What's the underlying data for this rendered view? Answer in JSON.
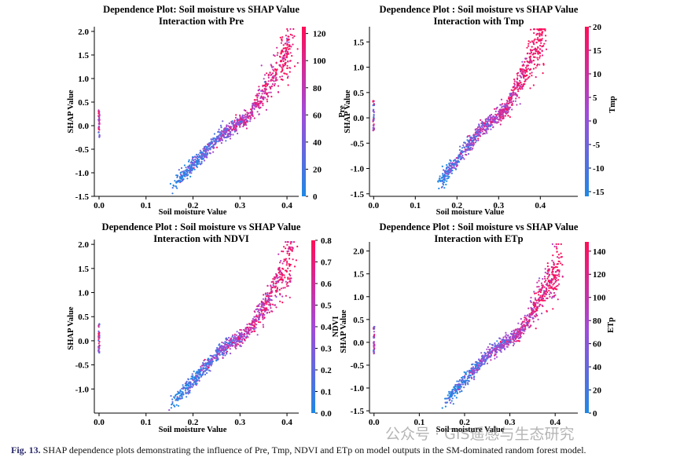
{
  "figure": {
    "caption_label": "Fig. 13.",
    "caption_text": "SHAP dependence plots demonstrating the influence of Pre, Tmp, NDVI and ETp on model outputs in the SM-dominated random forest model.",
    "watermark": "公众号 · GIS遥感与生态研究"
  },
  "chart_data": [
    {
      "type": "scatter",
      "title_line1": "Dependence Plot: Soil moisture vs SHAP Value",
      "title_line2": "Interaction with Pre",
      "xlabel": "Soil moisture Value",
      "ylabel": "SHAP Value",
      "color_label": "Pre",
      "xlim": [
        -0.01,
        0.425
      ],
      "ylim": [
        -1.5,
        2.1
      ],
      "xticks": [
        "0.0",
        "0.1",
        "0.2",
        "0.3",
        "0.4"
      ],
      "yticks": [
        "-1.5",
        "-1.0",
        "-0.5",
        "0.0",
        "0.5",
        "1.0",
        "1.5",
        "2.0"
      ],
      "cbar_range": [
        0,
        125
      ],
      "cbar_ticks": [
        "0",
        "20",
        "40",
        "60",
        "80",
        "100",
        "120"
      ],
      "colors": {
        "low": "#1e88e5",
        "mid": "#a34ad8",
        "high": "#ff0d57"
      }
    },
    {
      "type": "scatter",
      "title_line1": "Dependence Plot : Soil moisture vs SHAP Value",
      "title_line2": "Interaction with Tmp",
      "xlabel": "Soil moisture Value",
      "ylabel": "SHAP Value",
      "color_label": "Tmp",
      "xlim": [
        -0.01,
        0.49
      ],
      "ylim": [
        -1.55,
        1.8
      ],
      "xticks": [
        "0.0",
        "0.1",
        "0.2",
        "0.3",
        "0.4"
      ],
      "yticks": [
        "-1.5",
        "-1.0",
        "-0.5",
        "0.0",
        "0.5",
        "1.0",
        "1.5"
      ],
      "cbar_range": [
        -16,
        20
      ],
      "cbar_ticks": [
        "-15",
        "-10",
        "-5",
        "0",
        "5",
        "10",
        "15",
        "20"
      ],
      "colors": {
        "low": "#1e88e5",
        "mid": "#a34ad8",
        "high": "#ff0d57"
      }
    },
    {
      "type": "scatter",
      "title_line1": "Dependence Plot : Soil moisture vs SHAP Value",
      "title_line2": "Interaction with NDVI",
      "xlabel": "Soil moisture Value",
      "ylabel": "SHAP Value",
      "color_label": "NDVI",
      "xlim": [
        -0.01,
        0.425
      ],
      "ylim": [
        -1.5,
        2.1
      ],
      "xticks": [
        "0.0",
        "0.1",
        "0.2",
        "0.3",
        "0.4"
      ],
      "yticks": [
        "-1.0",
        "-0.5",
        "0.0",
        "0.5",
        "1.0",
        "1.5",
        "2.0"
      ],
      "cbar_range": [
        0,
        0.8
      ],
      "cbar_ticks": [
        "0.0",
        "0.1",
        "0.2",
        "0.3",
        "0.4",
        "0.5",
        "0.6",
        "0.7",
        "0.8"
      ],
      "colors": {
        "low": "#1e88e5",
        "mid": "#a34ad8",
        "high": "#ff0d57"
      }
    },
    {
      "type": "scatter",
      "title_line1": "Dependence Plot : Soil moisture vs SHAP Value",
      "title_line2": "Interaction with ETp",
      "xlabel": "Soil moisture Value",
      "ylabel": "SHAP Value",
      "color_label": "ETp",
      "xlim": [
        -0.01,
        0.45
      ],
      "ylim": [
        -1.55,
        2.2
      ],
      "xticks": [
        "0.0",
        "0.1",
        "0.2",
        "0.3",
        "0.4"
      ],
      "yticks": [
        "-1.5",
        "-1.0",
        "-0.5",
        "0.0",
        "0.5",
        "1.0",
        "1.5",
        "2.0"
      ],
      "cbar_range": [
        0,
        148
      ],
      "cbar_ticks": [
        "0",
        "20",
        "40",
        "60",
        "80",
        "100",
        "120",
        "140"
      ],
      "colors": {
        "low": "#1e88e5",
        "mid": "#a34ad8",
        "high": "#ff0d57"
      }
    }
  ]
}
